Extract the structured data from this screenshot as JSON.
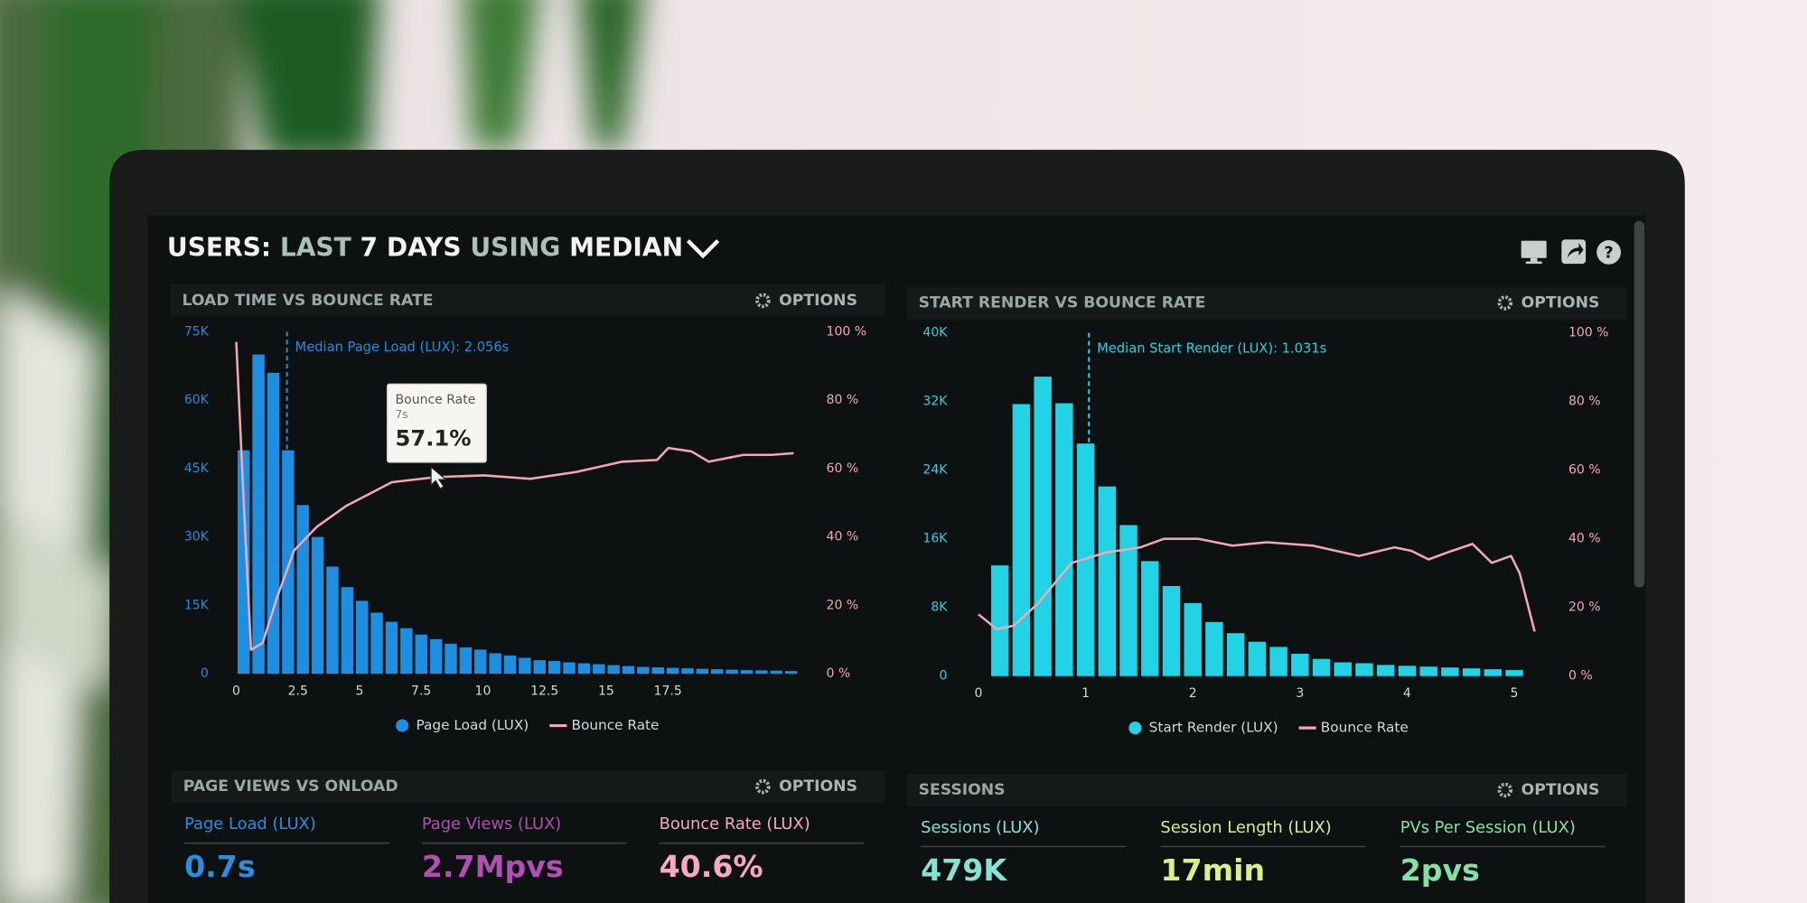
{
  "header": {
    "title": [
      "USERS:",
      "LAST",
      "7 DAYS",
      "USING",
      "MEDIAN"
    ]
  },
  "chart_data": [
    {
      "type": "histogram",
      "title": "LOAD TIME VS BOUNCE RATE",
      "options": "OPTIONS",
      "bins": [
        0,
        0.6,
        1.2,
        1.8,
        2.4,
        3,
        3.6,
        4.2,
        4.8,
        5.4,
        6,
        6.6,
        7.2,
        7.8,
        8.4,
        9,
        9.6,
        10.2,
        10.8,
        11.4,
        12,
        12.6,
        13.2,
        13.8,
        14.4,
        15,
        15.6,
        16.2,
        16.8,
        17.4,
        18,
        18.6,
        19.2,
        19.8,
        20.4,
        21,
        21.6,
        22.2,
        22.8
      ],
      "series": [
        {
          "name": "Page Load (LUX)",
          "color": "#1e8fe0",
          "values": [
            49000,
            70000,
            66000,
            49000,
            37000,
            30000,
            23500,
            19000,
            16000,
            13400,
            11400,
            10000,
            8600,
            7600,
            6600,
            5800,
            5300,
            4500,
            4000,
            3500,
            3000,
            2800,
            2500,
            2300,
            2100,
            1900,
            1700,
            1500,
            1400,
            1300,
            1200,
            1100,
            1000,
            900,
            800,
            750,
            700,
            600
          ]
        },
        {
          "name": "Bounce Rate",
          "color": "#f4a6b4",
          "type": "line",
          "axis": "y2",
          "x": [
            0,
            0.33,
            0.6,
            1.07,
            1.64,
            2.34,
            3.27,
            4.44,
            6.31,
            8.08,
            10.05,
            11.92,
            13.79,
            15.65,
            17.06,
            17.52,
            18.46,
            19.16,
            19.86,
            20.56,
            21.7,
            22.6
          ],
          "values": [
            97,
            46,
            7,
            9,
            22,
            36,
            43,
            49,
            56,
            57.5,
            58,
            57,
            59,
            62,
            62.5,
            66,
            65,
            62,
            63,
            64,
            64,
            64.5
          ]
        }
      ],
      "xlim": [
        -0.3,
        23.2
      ],
      "xticks": [
        0,
        2.5,
        5,
        7.5,
        10,
        12.5,
        15,
        17.5
      ],
      "ylim": [
        0,
        75000
      ],
      "yticks": [
        0,
        {
          "value": 15000,
          "label": "15K"
        },
        {
          "value": 30000,
          "label": "30K"
        },
        {
          "value": 45000,
          "label": "45K"
        },
        {
          "value": 60000,
          "label": "60K"
        },
        {
          "value": 75000,
          "label": "75K"
        }
      ],
      "y2lim": [
        0,
        100
      ],
      "y2ticks": [
        {
          "value": 0,
          "label": "0 %"
        },
        {
          "value": 20,
          "label": "20 %"
        },
        {
          "value": 40,
          "label": "40 %"
        },
        {
          "value": 60,
          "label": "60 %"
        },
        {
          "value": 80,
          "label": "80 %"
        },
        {
          "value": 100,
          "label": "100 %"
        }
      ],
      "median": {
        "value": 2.056,
        "label": "Median Page Load (LUX): 2.056s"
      },
      "tooltip": {
        "title": "Bounce Rate",
        "subtitle": "7s",
        "value": 57.1,
        "label": "57.1%"
      }
    },
    {
      "type": "histogram",
      "title": "START RENDER VS BOUNCE RATE",
      "options": "OPTIONS",
      "bins": [
        0.1,
        0.3,
        0.5,
        0.7,
        0.9,
        1.1,
        1.3,
        1.5,
        1.7,
        1.9,
        2.1,
        2.3,
        2.5,
        2.7,
        2.9,
        3.1,
        3.3,
        3.5,
        3.7,
        3.9,
        4.1,
        4.3,
        4.5,
        4.7,
        4.9,
        5.1
      ],
      "series": [
        {
          "name": "Start Render (LUX)",
          "color": "#22d3e6",
          "values": [
            12900,
            31700,
            34900,
            31800,
            27100,
            22100,
            17600,
            13400,
            10500,
            8500,
            6300,
            5000,
            4000,
            3400,
            2600,
            2000,
            1600,
            1500,
            1300,
            1200,
            1100,
            1000,
            900,
            800,
            700
          ]
        },
        {
          "name": "Bounce Rate",
          "color": "#f0a8b8",
          "type": "line",
          "axis": "y2",
          "x": [
            0,
            0.17,
            0.33,
            0.55,
            0.87,
            1.19,
            1.51,
            1.73,
            2.05,
            2.37,
            2.69,
            3.12,
            3.55,
            3.88,
            4.04,
            4.2,
            4.42,
            4.61,
            4.79,
            4.97,
            5.05,
            5.19
          ],
          "values": [
            18,
            13.7,
            14.7,
            21,
            33,
            36,
            37.5,
            40,
            40,
            38,
            39,
            38,
            35,
            37.5,
            36.5,
            34,
            36.5,
            38.5,
            33,
            35,
            30,
            13
          ]
        }
      ],
      "xlim": [
        -0.05,
        5.3
      ],
      "xticks": [
        0,
        1,
        2,
        3,
        4,
        5
      ],
      "ylim": [
        0,
        40000
      ],
      "yticks": [
        0,
        {
          "value": 8000,
          "label": "8K"
        },
        {
          "value": 16000,
          "label": "16K"
        },
        {
          "value": 24000,
          "label": "24K"
        },
        {
          "value": 32000,
          "label": "32K"
        },
        {
          "value": 40000,
          "label": "40K"
        }
      ],
      "y2lim": [
        0,
        100
      ],
      "y2ticks": [
        {
          "value": 0,
          "label": "0 %"
        },
        {
          "value": 20,
          "label": "20 %"
        },
        {
          "value": 40,
          "label": "40 %"
        },
        {
          "value": 60,
          "label": "60 %"
        },
        {
          "value": 80,
          "label": "80 %"
        },
        {
          "value": 100,
          "label": "100 %"
        }
      ],
      "median": {
        "value": 1.031,
        "label": "Median Start Render (LUX): 1.031s"
      }
    }
  ],
  "panels": [
    {
      "title": "PAGE VIEWS VS ONLOAD",
      "options": "OPTIONS",
      "stats": [
        {
          "label": "Page Load (LUX)",
          "value": "0.7s",
          "color": "#2a8fe0"
        },
        {
          "label": "Page Views (LUX)",
          "value": "2.7Mpvs",
          "color": "#b04fb4"
        },
        {
          "label": "Bounce Rate (LUX)",
          "value": "40.6%",
          "color": "#f6a9c4"
        }
      ]
    },
    {
      "title": "SESSIONS",
      "options": "OPTIONS",
      "stats": [
        {
          "label": "Sessions (LUX)",
          "value": "479K",
          "color": "#86e3d3"
        },
        {
          "label": "Session Length (LUX)",
          "value": "17min",
          "color": "#d9f08a"
        },
        {
          "label": "PVs Per Session (LUX)",
          "value": "2pvs",
          "color": "#82e2a6"
        }
      ]
    }
  ]
}
